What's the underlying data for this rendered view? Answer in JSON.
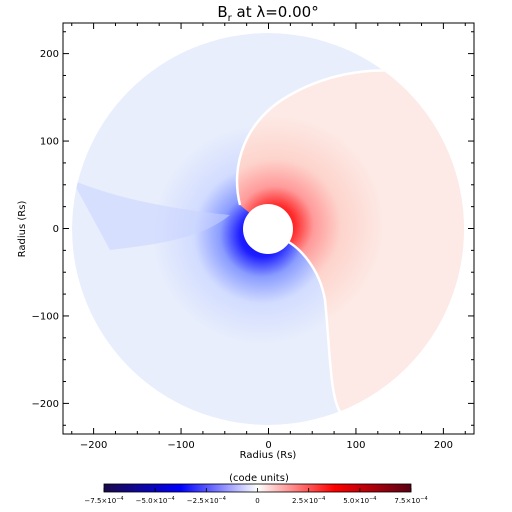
{
  "chart_data": {
    "type": "heatmap",
    "title": {
      "main": "B",
      "subscript": "r",
      "rest": " at λ=0.00°"
    },
    "xlabel": "Radius (Rs)",
    "ylabel": "Radius (Rs)",
    "xlim": [
      -235,
      235
    ],
    "ylim": [
      -235,
      235
    ],
    "x_ticks": [
      "−200",
      "−100",
      "0",
      "100",
      "200"
    ],
    "x_tick_values": [
      -200,
      -100,
      0,
      100,
      200
    ],
    "y_ticks": [
      "200",
      "100",
      "0",
      "−100",
      "−200"
    ],
    "y_tick_values": [
      200,
      100,
      0,
      -100,
      -200
    ],
    "domain_outer_radius": 230,
    "inner_boundary_radius": 30,
    "field_description": {
      "positive_region": "upper-right, red",
      "negative_region": "lower-left, blue",
      "current_sheet": "spiral separating positive and negative polarity"
    },
    "colorbar": {
      "label": "(code units)",
      "range": [
        -0.00075,
        0.00075
      ],
      "ticks": [
        {
          "value": -0.00075,
          "mant": "−7.5×10",
          "exp": "−4"
        },
        {
          "value": -0.0005,
          "mant": "−5.0×10",
          "exp": "−4"
        },
        {
          "value": -0.00025,
          "mant": "−2.5×10",
          "exp": "−4"
        },
        {
          "value": 0,
          "mant": "0",
          "exp": ""
        },
        {
          "value": 0.00025,
          "mant": "2.5×10",
          "exp": "−4"
        },
        {
          "value": 0.0005,
          "mant": "5.0×10",
          "exp": "−4"
        },
        {
          "value": 0.00075,
          "mant": "7.5×10",
          "exp": "−4"
        }
      ],
      "colors": [
        "#1a0a4a",
        "#0000ff",
        "#ffffff",
        "#ff0000",
        "#5a0014"
      ]
    }
  }
}
